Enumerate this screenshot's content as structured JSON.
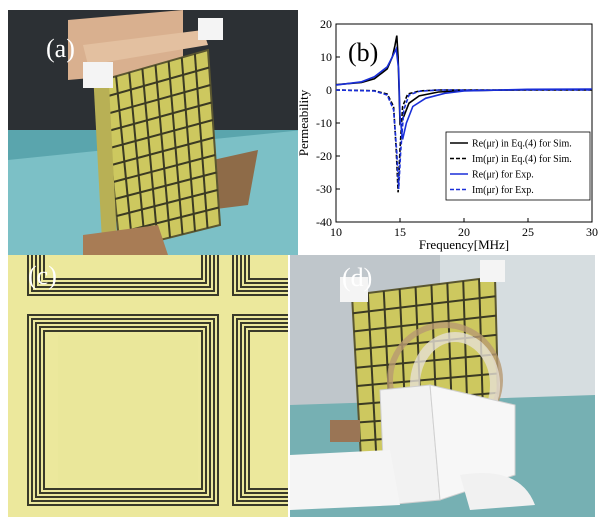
{
  "panels": {
    "a": {
      "label": "(a)"
    },
    "b": {
      "label": "(b)"
    },
    "c": {
      "label": "(c)"
    },
    "d": {
      "label": "(d)"
    }
  },
  "colors": {
    "board": "#c9c65e",
    "copper": "#3b3a23",
    "wall": "#2a2f33",
    "water": "#76b9bf",
    "foam": "#f4f4f4",
    "exp_line": "#1a2fd8",
    "sim_line": "#000000"
  },
  "chart_data": {
    "type": "line",
    "xlabel": "Frequency[MHz]",
    "ylabel": "Permeability",
    "xlim": [
      10,
      30
    ],
    "ylim": [
      -40,
      20
    ],
    "xticks": [
      10,
      15,
      20,
      25,
      30
    ],
    "yticks": [
      20,
      10,
      0,
      -10,
      -20,
      -30,
      -40
    ],
    "grid": false,
    "legend_position": "bottom-right",
    "legend": [
      {
        "text": "Re(μr) in Eq.(4) for Sim.",
        "color": "#000000",
        "dash": false
      },
      {
        "text": "Im(μr) in Eq.(4) for Sim.",
        "color": "#000000",
        "dash": true
      },
      {
        "text": "Re(μr) for Exp.",
        "color": "#1a2fd8",
        "dash": false
      },
      {
        "text": "Im(μr) for Exp.",
        "color": "#1a2fd8",
        "dash": true
      }
    ],
    "series": [
      {
        "name": "Re(μr) in Eq.(4) for Sim.",
        "color": "#000000",
        "dash": false,
        "x": [
          10,
          12,
          13,
          14,
          14.4,
          14.6,
          14.75,
          14.85,
          15.0,
          15.3,
          15.7,
          16.5,
          18,
          20,
          25,
          30
        ],
        "y": [
          1.6,
          2.3,
          3.4,
          6.4,
          10.0,
          13.4,
          16.5,
          10.0,
          -10.0,
          -8.0,
          -4.0,
          -1.8,
          -0.6,
          -0.2,
          0.1,
          0.1
        ]
      },
      {
        "name": "Im(μr) in Eq.(4) for Sim.",
        "color": "#000000",
        "dash": true,
        "x": [
          10,
          13,
          14,
          14.5,
          14.7,
          14.85,
          15.0,
          15.2,
          15.6,
          16.5,
          18,
          30
        ],
        "y": [
          0,
          -0.2,
          -1.2,
          -5.0,
          -18.0,
          -31.0,
          -18.0,
          -5.0,
          -1.2,
          -0.3,
          0,
          0
        ]
      },
      {
        "name": "Re(μr) for Exp.",
        "color": "#1a2fd8",
        "dash": false,
        "x": [
          10,
          12,
          13,
          14,
          14.4,
          14.7,
          14.9,
          15.0,
          15.2,
          15.5,
          16,
          17,
          18.5,
          20,
          25,
          30
        ],
        "y": [
          1.5,
          2.5,
          4.0,
          7.0,
          10.0,
          12.5,
          6.0,
          -8.0,
          -15.0,
          -10.0,
          -5.0,
          -2.5,
          -1.0,
          -0.3,
          0.2,
          0.3
        ]
      },
      {
        "name": "Im(μr) for Exp.",
        "color": "#1a2fd8",
        "dash": true,
        "x": [
          10,
          13,
          14,
          14.5,
          14.75,
          14.9,
          15.05,
          15.3,
          15.7,
          16.5,
          18,
          30
        ],
        "y": [
          0,
          -0.3,
          -1.5,
          -6.0,
          -19.0,
          -30.0,
          -19.0,
          -6.0,
          -1.5,
          -0.4,
          0,
          0
        ]
      }
    ]
  }
}
